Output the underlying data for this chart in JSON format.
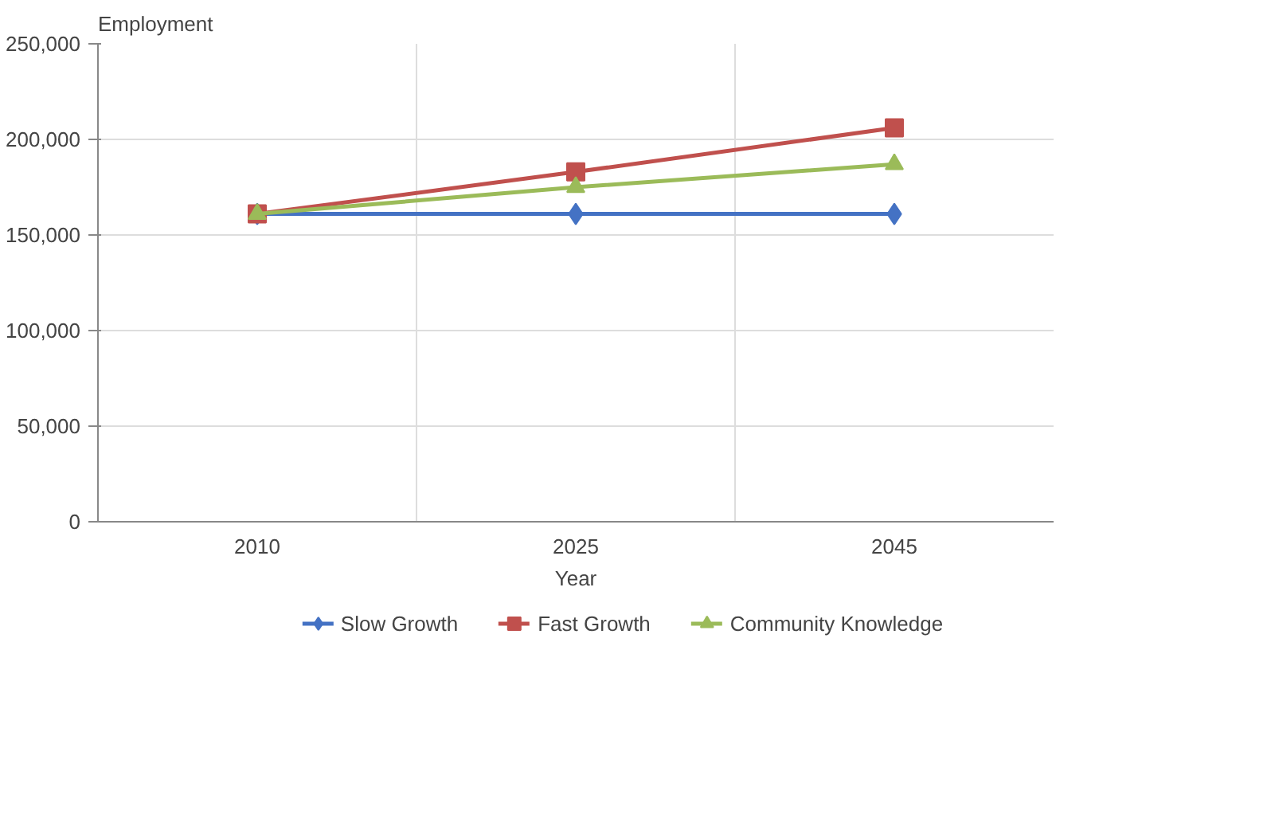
{
  "chart_data": {
    "type": "line",
    "xlabel": "Year",
    "ylabel": "Employment",
    "categories": [
      "2010",
      "2025",
      "2045"
    ],
    "series": [
      {
        "name": "Slow Growth",
        "color": "#4472c4",
        "marker": "diamond",
        "values": [
          161000,
          161000,
          161000
        ]
      },
      {
        "name": "Fast Growth",
        "color": "#c0504d",
        "marker": "square",
        "values": [
          161000,
          183000,
          206000
        ]
      },
      {
        "name": "Community Knowledge",
        "color": "#9bbb59",
        "marker": "triangle",
        "values": [
          161000,
          175000,
          187000
        ]
      }
    ],
    "ylim": [
      0,
      250000
    ],
    "yticks": [
      {
        "value": 0,
        "label": "0"
      },
      {
        "value": 50000,
        "label": "50,000"
      },
      {
        "value": 100000,
        "label": "100,000"
      },
      {
        "value": 150000,
        "label": "150,000"
      },
      {
        "value": 200000,
        "label": "200,000"
      },
      {
        "value": 250000,
        "label": "250,000"
      }
    ],
    "grid": true,
    "legend": "bottom",
    "line_style": "solid"
  }
}
